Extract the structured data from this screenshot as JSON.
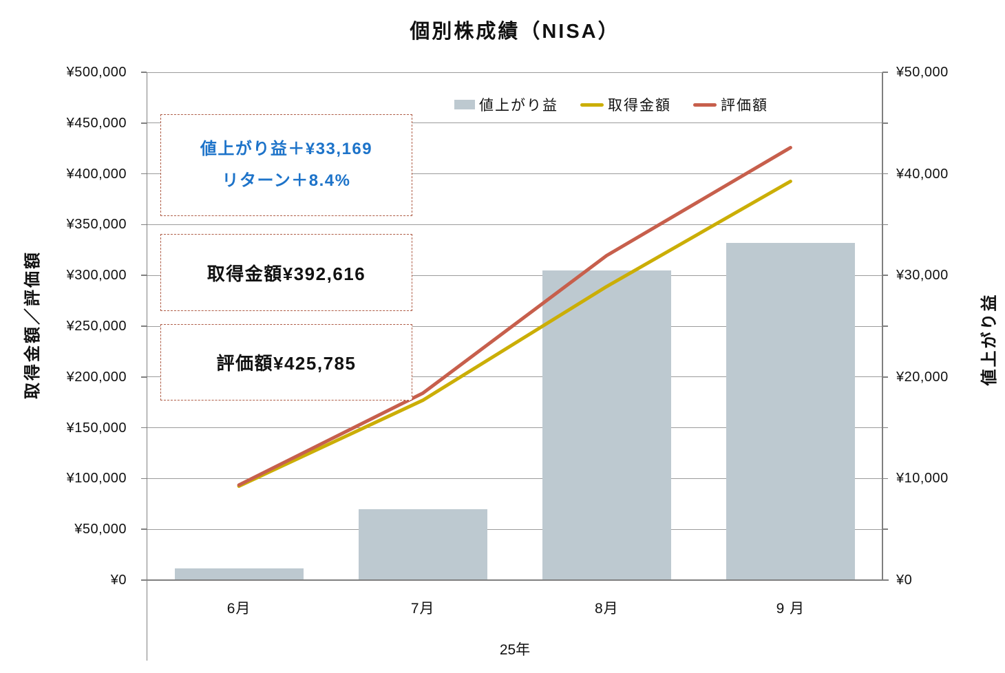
{
  "title": "個別株成績（NISA）",
  "legend": {
    "items": [
      {
        "label": "値上がり益",
        "type": "bar",
        "color": "#bdc9d0"
      },
      {
        "label": "取得金額",
        "type": "line",
        "color": "#cbae06"
      },
      {
        "label": "評価額",
        "type": "line",
        "color": "#c75f4c"
      }
    ]
  },
  "left_axis": {
    "title": "取得金額／評価額",
    "tick_labels": [
      "¥500,000",
      "¥450,000",
      "¥400,000",
      "¥350,000",
      "¥300,000",
      "¥250,000",
      "¥200,000",
      "¥150,000",
      "¥100,000",
      "¥50,000",
      "¥0"
    ]
  },
  "right_axis": {
    "title": "値上がり益",
    "tick_labels": [
      "¥50,000",
      "¥40,000",
      "¥30,000",
      "¥20,000",
      "¥10,000",
      "¥0"
    ]
  },
  "x_axis": {
    "labels": [
      "6月",
      "7月",
      "8月",
      "9 月"
    ],
    "group_label": "25年"
  },
  "annotations": {
    "gain": {
      "line1": "値上がり益＋¥33,169",
      "line2": "リターン＋8.4%",
      "text_color": "#1d73c9"
    },
    "acquisition": {
      "text": "取得金額¥392,616"
    },
    "valuation": {
      "text": "評価額¥425,785"
    },
    "border_color": "#ae5b44"
  },
  "chart_data": {
    "type": "combo",
    "title": "個別株成績（NISA）",
    "categories": [
      "6月",
      "7月",
      "8月",
      "9月"
    ],
    "category_group": "25年",
    "series": [
      {
        "name": "値上がり益",
        "type": "bar",
        "axis": "right",
        "color": "#bdc9d0",
        "values": [
          1150,
          7000,
          30500,
          33169
        ]
      },
      {
        "name": "取得金額",
        "type": "line",
        "axis": "left",
        "color": "#cbae06",
        "values": [
          92500,
          177000,
          289000,
          392616
        ]
      },
      {
        "name": "評価額",
        "type": "line",
        "axis": "left",
        "color": "#c75f4c",
        "values": [
          93650,
          184000,
          319500,
          425785
        ]
      }
    ],
    "left_axis": {
      "label": "取得金額／評価額",
      "min": 0,
      "max": 500000,
      "step": 50000,
      "format": "¥#,##0"
    },
    "right_axis": {
      "label": "値上がり益",
      "min": 0,
      "max": 50000,
      "step": 10000,
      "format": "¥#,##0"
    },
    "grid": true,
    "legend_position": "top",
    "latest": {
      "gain": 33169,
      "return_pct": 8.4,
      "acquisition": 392616,
      "valuation": 425785
    }
  }
}
